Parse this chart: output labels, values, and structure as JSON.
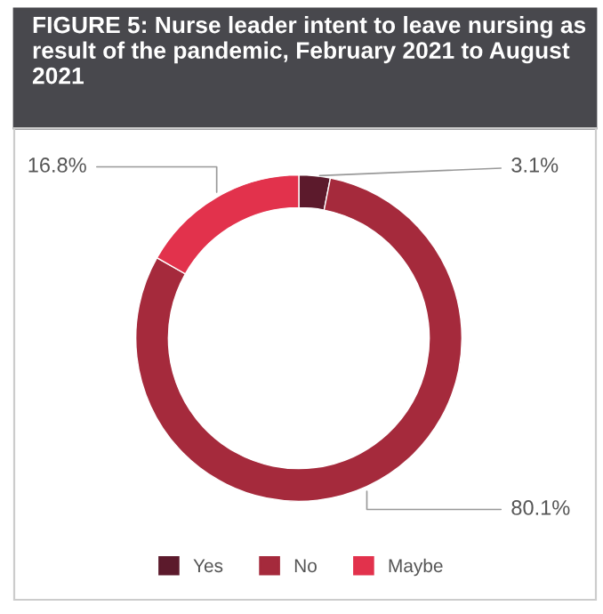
{
  "chart_data": {
    "type": "donut",
    "title": "FIGURE 5: Nurse leader intent to leave nursing as result of the pandemic, February 2021 to August 2021",
    "categories": [
      "Yes",
      "No",
      "Maybe"
    ],
    "values": [
      3.1,
      80.1,
      16.8
    ],
    "colors": [
      "#5c1a2c",
      "#a52a3c",
      "#e2324c"
    ],
    "value_labels": [
      "3.1%",
      "80.1%",
      "16.8%"
    ],
    "legend": "bottom"
  }
}
